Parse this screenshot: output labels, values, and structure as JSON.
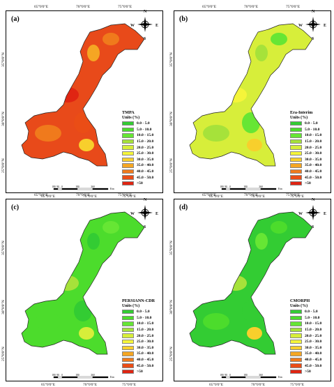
{
  "coords": {
    "top": [
      "65°0'0\"E",
      "70°0'0\"E",
      "75°0'0\"E"
    ],
    "bottom": [
      "65°0'0\"E",
      "70°0'0\"E",
      "75°0'0\"E"
    ],
    "left": [
      "35°0'0\"N",
      "30°0'0\"N",
      "25°0'0\"N"
    ]
  },
  "compass": {
    "n": "N",
    "s": "S",
    "e": "E",
    "w": "W"
  },
  "scale": {
    "ticks": [
      "180",
      "90",
      "0",
      "180",
      "360"
    ],
    "unit": "Km"
  },
  "legend_classes": [
    {
      "label": "0.0 - 5.0",
      "color": "#33cc33"
    },
    {
      "label": "5.0 - 10.0",
      "color": "#4cdc2c"
    },
    {
      "label": "10.0 - 15.0",
      "color": "#66e634"
    },
    {
      "label": "15.0 - 20.0",
      "color": "#a6e23a"
    },
    {
      "label": "20.0 - 25.0",
      "color": "#d7ee3a"
    },
    {
      "label": "25.0 - 30.0",
      "color": "#f5f53a"
    },
    {
      "label": "30.0 - 35.0",
      "color": "#f8cf2c"
    },
    {
      "label": "35.0 - 40.0",
      "color": "#f5a623"
    },
    {
      "label": "40.0 - 45.0",
      "color": "#f07a1c"
    },
    {
      "label": "45.0 - 50.0",
      "color": "#ea4d16"
    },
    {
      "label": ">50",
      "color": "#e02512"
    }
  ],
  "panels": [
    {
      "label": "(a)",
      "product": "TMPA",
      "units": "Units (%)",
      "base_color": "#e84a1a",
      "patches": [
        {
          "c": "#f07a1c"
        },
        {
          "c": "#f5a623"
        },
        {
          "c": "#e02512"
        },
        {
          "c": "#f07a1c"
        },
        {
          "c": "#f8cf2c"
        },
        {
          "c": "#ea4d16"
        }
      ]
    },
    {
      "label": "(b)",
      "product": "Era-Interim",
      "units": "Units (%)",
      "base_color": "#d7ee3a",
      "patches": [
        {
          "c": "#66e634"
        },
        {
          "c": "#a6e23a"
        },
        {
          "c": "#f5f53a"
        },
        {
          "c": "#a6e23a"
        },
        {
          "c": "#f8cf2c"
        },
        {
          "c": "#66e634"
        }
      ]
    },
    {
      "label": "(c)",
      "product": "PERSIANN-CDR",
      "units": "Units (%)",
      "base_color": "#4cdc2c",
      "patches": [
        {
          "c": "#66e634"
        },
        {
          "c": "#33cc33"
        },
        {
          "c": "#a6e23a"
        },
        {
          "c": "#4cdc2c"
        },
        {
          "c": "#d7ee3a"
        },
        {
          "c": "#33cc33"
        }
      ]
    },
    {
      "label": "(d)",
      "product": "CMORPH",
      "units": "Units (%)",
      "base_color": "#33cc33",
      "patches": [
        {
          "c": "#4cdc2c"
        },
        {
          "c": "#66e634"
        },
        {
          "c": "#a6e23a"
        },
        {
          "c": "#4cdc2c"
        },
        {
          "c": "#f8cf2c"
        },
        {
          "c": "#33cc33"
        }
      ]
    }
  ]
}
